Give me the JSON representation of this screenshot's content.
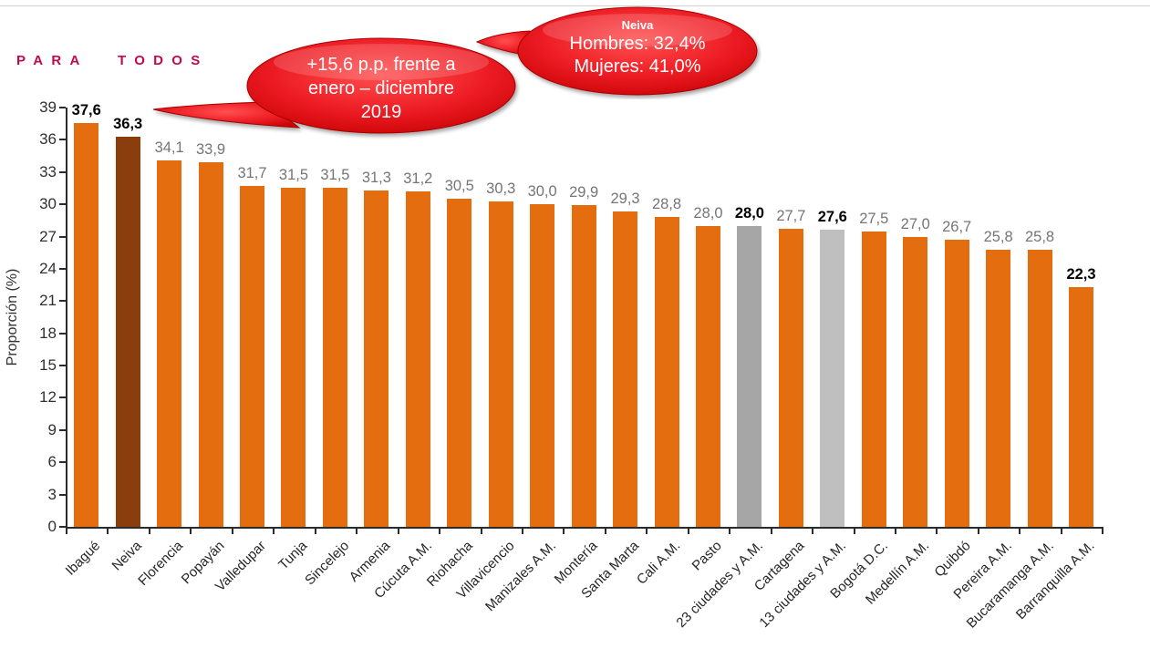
{
  "header": {
    "slogan": "PARA TODOS"
  },
  "callouts": {
    "change": {
      "lines": [
        "+15,6 p.p. frente a",
        "enero – diciembre",
        "2019"
      ],
      "fill": "#ED1C24"
    },
    "neiva": {
      "title": "Neiva",
      "lines": [
        "Hombres: 32,4%",
        "Mujeres: 41,0%"
      ],
      "fill": "#ED1C24"
    }
  },
  "chart_data": {
    "type": "bar",
    "title": "",
    "xlabel": "",
    "ylabel": "Proporción (%)",
    "ylim": [
      0,
      39
    ],
    "yticks": [
      0,
      3,
      6,
      9,
      12,
      15,
      18,
      21,
      24,
      27,
      30,
      33,
      36,
      39
    ],
    "grid": false,
    "legend": false,
    "colors": {
      "bar_default": "#E36D0F",
      "bar_neiva": "#8B3E0D",
      "bar_23_cities": "#A6A6A6",
      "bar_13_cities": "#BFBFBF",
      "value_label_default": "#757575",
      "value_label_highlight": "#000000"
    },
    "bars": [
      {
        "category": "Ibagué",
        "value": 37.6,
        "label": "37,6",
        "bold": true,
        "color_key": "bar_default"
      },
      {
        "category": "Neiva",
        "value": 36.3,
        "label": "36,3",
        "bold": true,
        "color_key": "bar_neiva"
      },
      {
        "category": "Florencia",
        "value": 34.1,
        "label": "34,1",
        "bold": false,
        "color_key": "bar_default"
      },
      {
        "category": "Popayán",
        "value": 33.9,
        "label": "33,9",
        "bold": false,
        "color_key": "bar_default"
      },
      {
        "category": "Valledupar",
        "value": 31.7,
        "label": "31,7",
        "bold": false,
        "color_key": "bar_default"
      },
      {
        "category": "Tunja",
        "value": 31.5,
        "label": "31,5",
        "bold": false,
        "color_key": "bar_default"
      },
      {
        "category": "Sincelejo",
        "value": 31.5,
        "label": "31,5",
        "bold": false,
        "color_key": "bar_default"
      },
      {
        "category": "Armenia",
        "value": 31.3,
        "label": "31,3",
        "bold": false,
        "color_key": "bar_default"
      },
      {
        "category": "Cúcuta A.M.",
        "value": 31.2,
        "label": "31,2",
        "bold": false,
        "color_key": "bar_default"
      },
      {
        "category": "Riohacha",
        "value": 30.5,
        "label": "30,5",
        "bold": false,
        "color_key": "bar_default"
      },
      {
        "category": "Villavicencio",
        "value": 30.3,
        "label": "30,3",
        "bold": false,
        "color_key": "bar_default"
      },
      {
        "category": "Manizales A.M.",
        "value": 30.0,
        "label": "30,0",
        "bold": false,
        "color_key": "bar_default"
      },
      {
        "category": "Montería",
        "value": 29.9,
        "label": "29,9",
        "bold": false,
        "color_key": "bar_default"
      },
      {
        "category": "Santa Marta",
        "value": 29.3,
        "label": "29,3",
        "bold": false,
        "color_key": "bar_default"
      },
      {
        "category": "Cali A.M.",
        "value": 28.8,
        "label": "28,8",
        "bold": false,
        "color_key": "bar_default"
      },
      {
        "category": "Pasto",
        "value": 28.0,
        "label": "28,0",
        "bold": false,
        "color_key": "bar_default"
      },
      {
        "category": "23 ciudades y A.M.",
        "value": 28.0,
        "label": "28,0",
        "bold": true,
        "color_key": "bar_23_cities"
      },
      {
        "category": "Cartagena",
        "value": 27.7,
        "label": "27,7",
        "bold": false,
        "color_key": "bar_default"
      },
      {
        "category": "13 ciudades y A.M.",
        "value": 27.6,
        "label": "27,6",
        "bold": true,
        "color_key": "bar_13_cities"
      },
      {
        "category": "Bogotá D.C.",
        "value": 27.5,
        "label": "27,5",
        "bold": false,
        "color_key": "bar_default"
      },
      {
        "category": "Medellín A.M.",
        "value": 27.0,
        "label": "27,0",
        "bold": false,
        "color_key": "bar_default"
      },
      {
        "category": "Quibdó",
        "value": 26.7,
        "label": "26,7",
        "bold": false,
        "color_key": "bar_default"
      },
      {
        "category": "Pereira A.M.",
        "value": 25.8,
        "label": "25,8",
        "bold": false,
        "color_key": "bar_default"
      },
      {
        "category": "Bucaramanga A.M.",
        "value": 25.8,
        "label": "25,8",
        "bold": false,
        "color_key": "bar_default"
      },
      {
        "category": "Barranquilla A.M.",
        "value": 22.3,
        "label": "22,3",
        "bold": true,
        "color_key": "bar_default"
      }
    ]
  }
}
